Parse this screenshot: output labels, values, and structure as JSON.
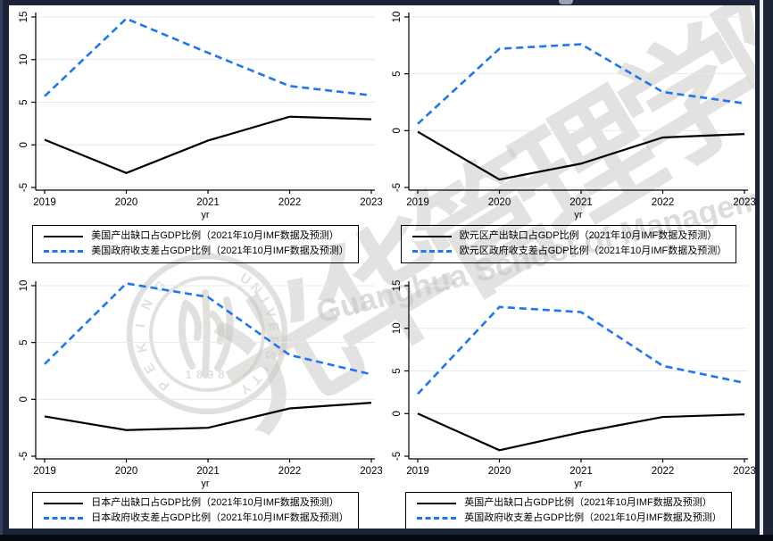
{
  "page": {
    "background_color": "#1a2338",
    "panel_color": "#ffffff"
  },
  "colors": {
    "output_gap_line": "#000000",
    "fiscal_line": "#1d76f2",
    "gridline": "#e4e9ee",
    "axis": "#000000",
    "watermark": "#c9c7c3"
  },
  "watermark": {
    "seal_word_left": "PEKING",
    "seal_word_right": "UNIVERSITY",
    "seal_year": "1898",
    "calligraphy": "光华管理学院",
    "latin_text": "Guanghua School of Management"
  },
  "chart_data": [
    {
      "type": "line",
      "region": "美国",
      "position": "top-left",
      "x": [
        "2019",
        "2020",
        "2021",
        "2022",
        "2023"
      ],
      "xlabel": "yr",
      "ylim": [
        -5,
        15
      ],
      "yticks": [
        -5,
        0,
        5,
        10,
        15
      ],
      "grid": true,
      "legend_position": "bottom",
      "series": [
        {
          "name": "美国产出缺口占GDP比例（2021年10月IMF数据及预测）",
          "style": "solid",
          "color": "#000000",
          "values": [
            0.6,
            -3.3,
            0.5,
            3.3,
            3.0
          ]
        },
        {
          "name": "美国政府收支差占GDP比例（2021年10月IMF数据及预测）",
          "style": "dashed",
          "color": "#1d76f2",
          "values": [
            5.7,
            14.8,
            10.8,
            6.9,
            5.8
          ]
        }
      ]
    },
    {
      "type": "line",
      "region": "欧元区",
      "position": "top-right",
      "x": [
        "2019",
        "2020",
        "2021",
        "2022",
        "2023"
      ],
      "xlabel": "yr",
      "ylim": [
        -5,
        10
      ],
      "yticks": [
        -5,
        0,
        5,
        10
      ],
      "grid": true,
      "legend_position": "bottom",
      "series": [
        {
          "name": "欧元区产出缺口占GDP比例（2021年10月IMF数据及预测）",
          "style": "solid",
          "color": "#000000",
          "values": [
            -0.1,
            -4.3,
            -2.9,
            -0.6,
            -0.3
          ]
        },
        {
          "name": "欧元区政府收支差占GDP比例（2021年10月IMF数据及预测）",
          "style": "dashed",
          "color": "#1d76f2",
          "values": [
            0.6,
            7.2,
            7.6,
            3.4,
            2.4
          ]
        }
      ]
    },
    {
      "type": "line",
      "region": "日本",
      "position": "bottom-left",
      "x": [
        "2019",
        "2020",
        "2021",
        "2022",
        "2023"
      ],
      "xlabel": "yr",
      "ylim": [
        -5,
        10
      ],
      "yticks": [
        -5,
        0,
        5,
        10
      ],
      "grid": true,
      "legend_position": "bottom",
      "series": [
        {
          "name": "日本产出缺口占GDP比例（2021年10月IMF数据及预测）",
          "style": "solid",
          "color": "#000000",
          "values": [
            -1.5,
            -2.7,
            -2.5,
            -0.8,
            -0.3
          ]
        },
        {
          "name": "日本政府收支差占GDP比例（2021年10月IMF数据及预测）",
          "style": "dashed",
          "color": "#1d76f2",
          "values": [
            3.1,
            10.2,
            9.0,
            3.9,
            2.2
          ]
        }
      ]
    },
    {
      "type": "line",
      "region": "英国",
      "position": "bottom-right",
      "x": [
        "2019",
        "2020",
        "2021",
        "2022",
        "2023"
      ],
      "xlabel": "yr",
      "ylim": [
        -5,
        15
      ],
      "yticks": [
        -5,
        0,
        5,
        10,
        15
      ],
      "grid": true,
      "legend_position": "bottom",
      "series": [
        {
          "name": "英国产出缺口占GDP比例（2021年10月IMF数据及预测）",
          "style": "solid",
          "color": "#000000",
          "values": [
            0.0,
            -4.3,
            -2.2,
            -0.4,
            -0.1
          ]
        },
        {
          "name": "英国政府收支差占GDP比例（2021年10月IMF数据及预测）",
          "style": "dashed",
          "color": "#1d76f2",
          "values": [
            2.3,
            12.5,
            11.9,
            5.6,
            3.6
          ]
        }
      ]
    }
  ]
}
